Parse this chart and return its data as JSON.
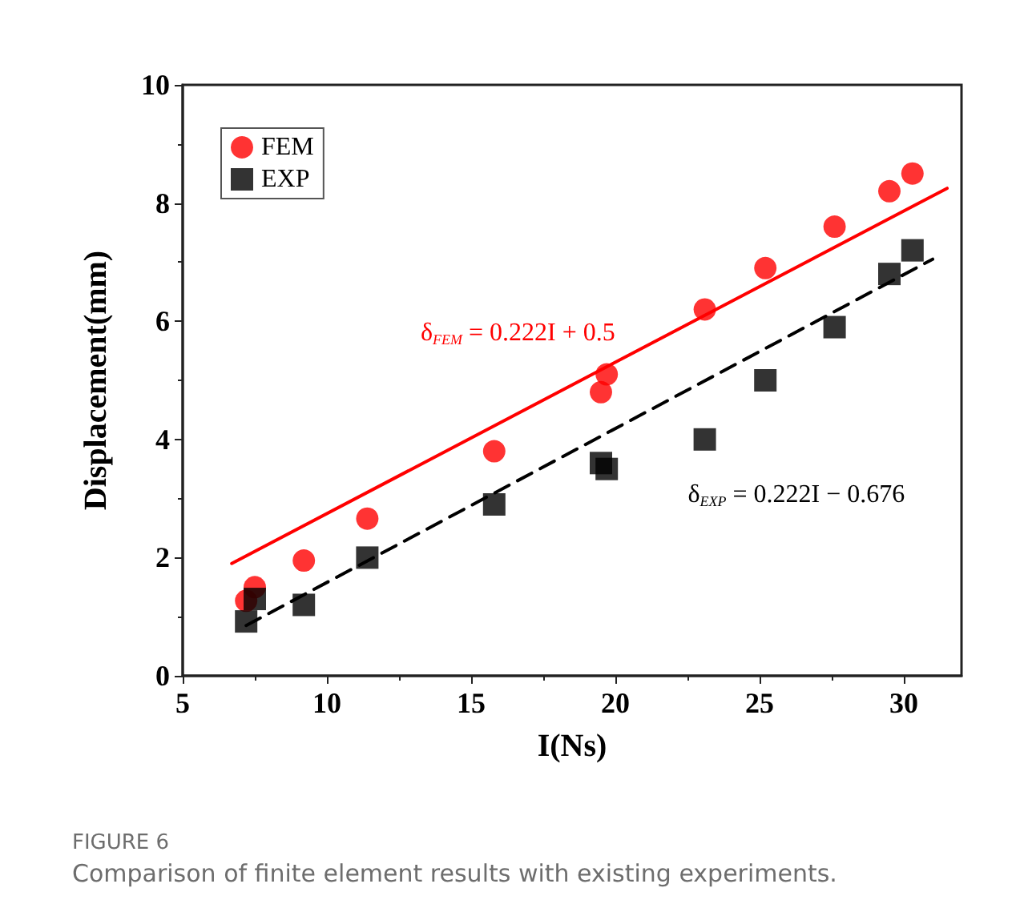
{
  "chart_data": {
    "type": "scatter",
    "title": "FIGURE 6",
    "subtitle": "Comparison of finite element results with existing experiments.",
    "xlabel": "I(Ns)",
    "ylabel": "Displacement(mm)",
    "xlim": [
      5,
      32
    ],
    "xticks": [
      5,
      10,
      15,
      20,
      25,
      30
    ],
    "ylim": [
      0,
      10
    ],
    "yticks": [
      0,
      2,
      4,
      6,
      8,
      10
    ],
    "grid": false,
    "legend": "top left",
    "series": [
      {
        "name": "FEM",
        "color": "#ff0000",
        "marker": "circle",
        "x": [
          7.2,
          7.5,
          9.2,
          11.4,
          15.8,
          19.5,
          19.7,
          23.1,
          25.2,
          27.6,
          29.5,
          30.3
        ],
        "values": [
          1.27,
          1.5,
          1.95,
          2.66,
          3.8,
          4.8,
          5.1,
          6.2,
          6.9,
          7.6,
          8.2,
          8.5
        ]
      },
      {
        "name": "EXP",
        "color": "#000000",
        "marker": "square",
        "x": [
          7.2,
          7.5,
          9.2,
          11.4,
          15.8,
          19.5,
          19.7,
          23.1,
          25.2,
          27.6,
          29.5,
          30.3
        ],
        "values": [
          0.92,
          1.3,
          1.2,
          2.0,
          2.9,
          3.6,
          3.5,
          4.0,
          5.0,
          5.9,
          6.8,
          7.2
        ]
      },
      {
        "type": "line",
        "color": "#ff0000",
        "line_style": "solid",
        "x": [
          6.7,
          31.5
        ],
        "values": [
          1.9,
          8.25
        ]
      },
      {
        "type": "line",
        "color": "#000000",
        "line_style": "dashed",
        "x": [
          7.2,
          31
        ],
        "values": [
          0.85,
          7.05
        ]
      }
    ],
    "annotations": [
      "δ$_{FEM}$ = 0.222I + 0.5",
      "δ$_{EXP}$ = 0.222I − 0.676"
    ]
  }
}
